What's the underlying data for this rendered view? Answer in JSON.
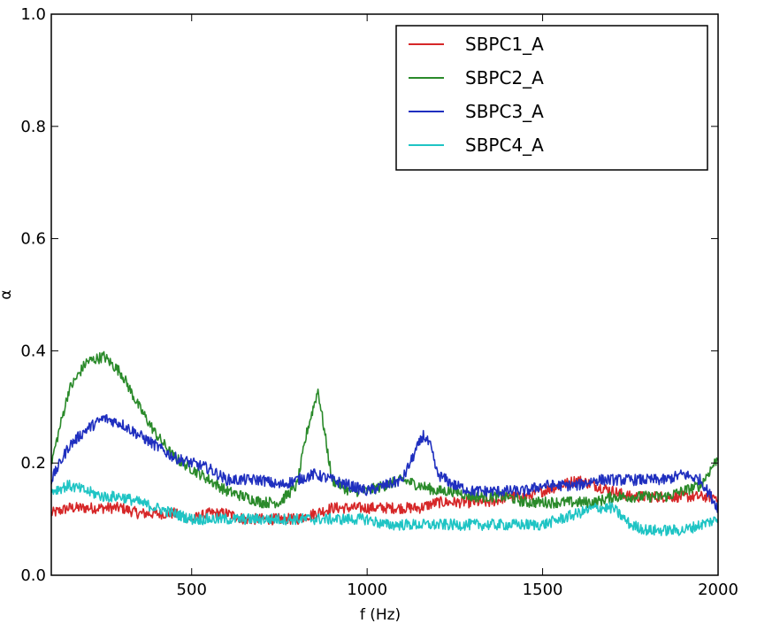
{
  "chart_data": {
    "type": "line",
    "title": "",
    "xlabel": "f (Hz)",
    "ylabel": "α",
    "xlim": [
      100,
      2000
    ],
    "ylim": [
      0.0,
      1.0
    ],
    "x_ticks": [
      500,
      1000,
      1500,
      2000
    ],
    "x_tick_labels": [
      "500",
      "1000",
      "1500",
      "2000"
    ],
    "y_ticks": [
      0.0,
      0.2,
      0.4,
      0.6,
      0.8,
      1.0
    ],
    "y_tick_labels": [
      "0.0",
      "0.2",
      "0.4",
      "0.6",
      "0.8",
      "1.0"
    ],
    "grid": false,
    "legend_position": "top-right",
    "series": [
      {
        "name": "SBPC1_A",
        "color": "#d62728",
        "x": [
          100,
          150,
          200,
          250,
          300,
          350,
          400,
          450,
          500,
          550,
          600,
          650,
          700,
          750,
          800,
          850,
          900,
          950,
          1000,
          1050,
          1100,
          1150,
          1200,
          1250,
          1300,
          1350,
          1400,
          1450,
          1500,
          1550,
          1600,
          1650,
          1700,
          1750,
          1800,
          1850,
          1900,
          1950,
          2000
        ],
        "values": [
          0.11,
          0.12,
          0.12,
          0.12,
          0.12,
          0.11,
          0.11,
          0.11,
          0.1,
          0.11,
          0.11,
          0.1,
          0.1,
          0.1,
          0.1,
          0.11,
          0.12,
          0.12,
          0.12,
          0.12,
          0.12,
          0.12,
          0.13,
          0.13,
          0.13,
          0.13,
          0.14,
          0.14,
          0.15,
          0.16,
          0.17,
          0.16,
          0.15,
          0.14,
          0.14,
          0.14,
          0.14,
          0.14,
          0.14
        ]
      },
      {
        "name": "SBPC2_A",
        "color": "#2a8a2a",
        "x": [
          100,
          150,
          200,
          250,
          300,
          350,
          400,
          450,
          500,
          550,
          600,
          650,
          700,
          750,
          800,
          830,
          860,
          880,
          900,
          950,
          1000,
          1050,
          1100,
          1150,
          1200,
          1250,
          1300,
          1350,
          1400,
          1450,
          1500,
          1550,
          1600,
          1650,
          1700,
          1750,
          1800,
          1850,
          1900,
          1950,
          2000
        ],
        "values": [
          0.2,
          0.33,
          0.38,
          0.39,
          0.36,
          0.3,
          0.25,
          0.21,
          0.19,
          0.17,
          0.15,
          0.14,
          0.13,
          0.13,
          0.16,
          0.26,
          0.33,
          0.25,
          0.17,
          0.15,
          0.15,
          0.16,
          0.17,
          0.16,
          0.15,
          0.15,
          0.14,
          0.14,
          0.14,
          0.13,
          0.13,
          0.13,
          0.13,
          0.13,
          0.14,
          0.14,
          0.14,
          0.14,
          0.15,
          0.16,
          0.21
        ]
      },
      {
        "name": "SBPC3_A",
        "color": "#1f2fbf",
        "x": [
          100,
          150,
          200,
          250,
          300,
          350,
          400,
          450,
          500,
          550,
          600,
          650,
          700,
          750,
          800,
          850,
          900,
          950,
          1000,
          1050,
          1100,
          1130,
          1160,
          1180,
          1200,
          1250,
          1300,
          1350,
          1400,
          1450,
          1500,
          1550,
          1600,
          1650,
          1700,
          1750,
          1800,
          1850,
          1900,
          1950,
          2000
        ],
        "values": [
          0.17,
          0.23,
          0.26,
          0.28,
          0.27,
          0.25,
          0.23,
          0.21,
          0.2,
          0.19,
          0.17,
          0.17,
          0.17,
          0.16,
          0.17,
          0.18,
          0.17,
          0.16,
          0.15,
          0.16,
          0.17,
          0.21,
          0.25,
          0.23,
          0.18,
          0.16,
          0.15,
          0.15,
          0.15,
          0.15,
          0.16,
          0.16,
          0.16,
          0.17,
          0.17,
          0.17,
          0.17,
          0.17,
          0.18,
          0.17,
          0.12
        ]
      },
      {
        "name": "SBPC4_A",
        "color": "#1fc4c4",
        "x": [
          100,
          150,
          200,
          250,
          300,
          350,
          400,
          450,
          500,
          550,
          600,
          650,
          700,
          750,
          800,
          850,
          900,
          950,
          1000,
          1050,
          1100,
          1150,
          1200,
          1250,
          1300,
          1350,
          1400,
          1450,
          1500,
          1550,
          1600,
          1650,
          1700,
          1750,
          1800,
          1850,
          1900,
          1950,
          2000
        ],
        "values": [
          0.15,
          0.16,
          0.15,
          0.14,
          0.14,
          0.13,
          0.12,
          0.11,
          0.1,
          0.1,
          0.1,
          0.1,
          0.1,
          0.1,
          0.1,
          0.1,
          0.1,
          0.1,
          0.1,
          0.09,
          0.09,
          0.09,
          0.09,
          0.09,
          0.09,
          0.09,
          0.09,
          0.09,
          0.09,
          0.1,
          0.11,
          0.12,
          0.12,
          0.09,
          0.08,
          0.08,
          0.08,
          0.09,
          0.1
        ]
      }
    ]
  }
}
